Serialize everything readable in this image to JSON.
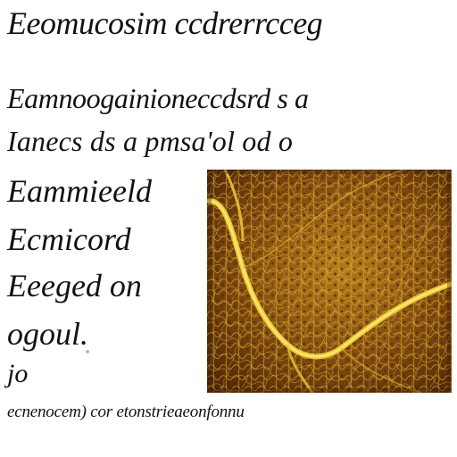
{
  "heading": "Eeomucosim ccdrerrcceg",
  "paragraph": {
    "line1": "Eamnoogainioneccdsrd s a",
    "line2": "Ianecs  ds  a  pmsa'ol od  o"
  },
  "side_text": [
    "Eammieeld",
    "Ecmicord",
    "Eeeged  on",
    "ogoul.",
    "jo"
  ],
  "caption": "ecnenocem) cor  etonstrieaeonfonnu",
  "image": {
    "subject": "leaf-vein-macro-photo",
    "colors": {
      "light_vein": "#f2d23a",
      "mid": "#c08a1e",
      "dark": "#5a2a08"
    }
  }
}
